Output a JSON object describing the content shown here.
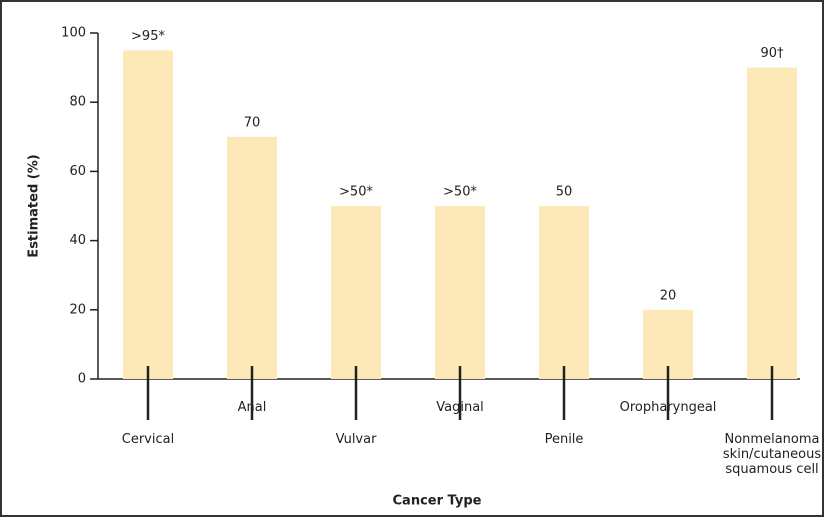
{
  "chart_data": {
    "type": "bar",
    "categories": [
      "Cervical",
      "Anal",
      "Vulvar",
      "Vaginal",
      "Penile",
      "Oropharyngeal",
      "Nonmelanoma\nskin/cutaneous\nsquamous cell"
    ],
    "values": [
      95,
      70,
      50,
      50,
      50,
      20,
      90
    ],
    "value_labels": [
      ">95*",
      "70",
      ">50*",
      ">50*",
      "50",
      "20",
      "90†"
    ],
    "color": "#fde8b8",
    "ylim": [
      0,
      100
    ],
    "yticks": [
      0,
      20,
      40,
      60,
      80,
      100
    ],
    "x_label": "Cancer Type",
    "y_label": "Estimated (%)"
  }
}
